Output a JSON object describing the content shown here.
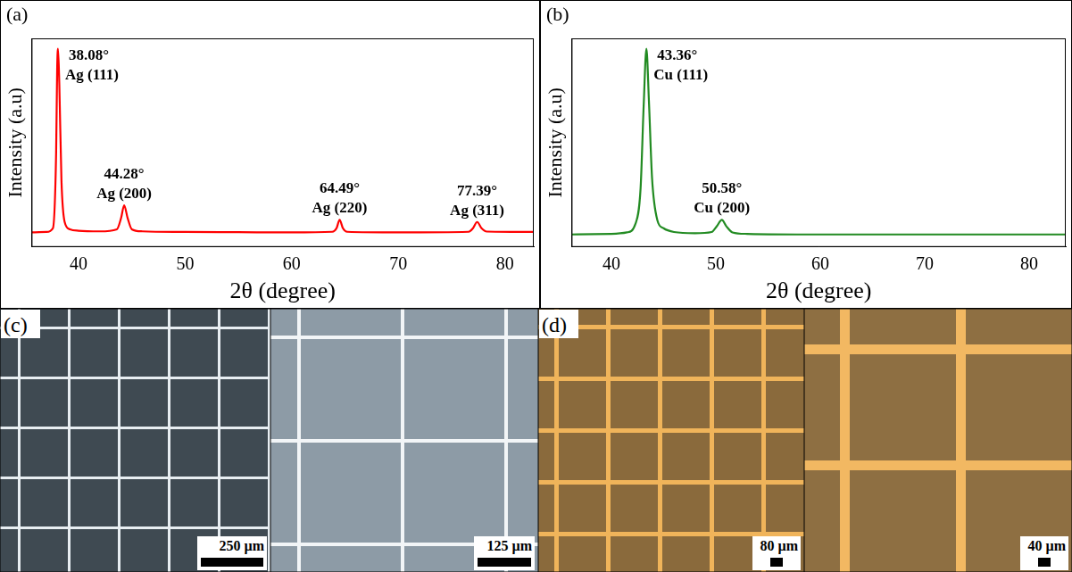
{
  "chart_data": [
    {
      "type": "line",
      "panel_label": "(a)",
      "x_label": "2θ (degree)",
      "y_label": "Intensity (a.u)",
      "x": [
        35.6,
        37.0,
        37.6,
        37.9,
        38.0,
        38.08,
        38.2,
        38.4,
        38.7,
        39.2,
        40,
        42,
        43.6,
        44.0,
        44.28,
        44.6,
        45.0,
        46,
        50,
        55,
        60,
        63.8,
        64.2,
        64.49,
        64.8,
        65.2,
        70,
        76.6,
        77.0,
        77.39,
        77.8,
        78.3,
        82.7
      ],
      "series": [
        {
          "name": "Ag",
          "color": "#ff0000",
          "values": [
            7,
            7.2,
            9,
            45,
            86,
            95,
            78,
            32,
            12,
            8.5,
            7.8,
            7.5,
            8.5,
            14,
            20,
            14,
            8.5,
            7.5,
            7.2,
            7.1,
            7,
            7.3,
            9,
            13,
            9,
            7.3,
            7,
            7.3,
            9,
            12,
            9,
            7.4,
            7.2
          ]
        }
      ],
      "peaks": [
        {
          "x": 38.08,
          "label": "38.08°",
          "plane": "Ag (111)"
        },
        {
          "x": 44.28,
          "label": "44.28°",
          "plane": "Ag (200)"
        },
        {
          "x": 64.49,
          "label": "64.49°",
          "plane": "Ag (220)"
        },
        {
          "x": 77.39,
          "label": "77.39°",
          "plane": "Ag (311)"
        }
      ],
      "xlim": [
        35.6,
        82.7
      ],
      "xticks": [
        40,
        50,
        60,
        70,
        80
      ],
      "ylim": [
        0,
        100
      ],
      "tick_labels": "x",
      "grid": false
    },
    {
      "type": "line",
      "panel_label": "(b)",
      "x_label": "2θ (degree)",
      "y_label": "Intensity (a.u)",
      "x": [
        36.2,
        40,
        41.5,
        42.3,
        42.8,
        43.1,
        43.36,
        43.6,
        43.9,
        44.4,
        45,
        46,
        48,
        49.6,
        50.1,
        50.58,
        51.0,
        51.6,
        53,
        60,
        70,
        83.5
      ],
      "series": [
        {
          "name": "Cu",
          "color": "#228b22",
          "values": [
            6,
            6.3,
            7,
            11,
            28,
            68,
            95,
            70,
            33,
            13,
            9,
            7.2,
            6.6,
            7.2,
            10,
            13,
            10,
            7,
            6.3,
            6,
            6,
            6
          ]
        }
      ],
      "peaks": [
        {
          "x": 43.36,
          "label": "43.36°",
          "plane": "Cu (111)"
        },
        {
          "x": 50.58,
          "label": "50.58°",
          "plane": "Cu (200)"
        }
      ],
      "xlim": [
        36.2,
        83.5
      ],
      "xticks": [
        40,
        50,
        60,
        70,
        80
      ],
      "ylim": [
        0,
        100
      ],
      "tick_labels": "x",
      "grid": false
    }
  ],
  "micrographs": [
    {
      "panel_label": "(c)",
      "images": [
        {
          "scale_bar": "250 µm"
        },
        {
          "scale_bar": "125 µm"
        }
      ]
    },
    {
      "panel_label": "(d)",
      "images": [
        {
          "scale_bar": "80 µm"
        },
        {
          "scale_bar": "40 µm"
        }
      ]
    }
  ]
}
